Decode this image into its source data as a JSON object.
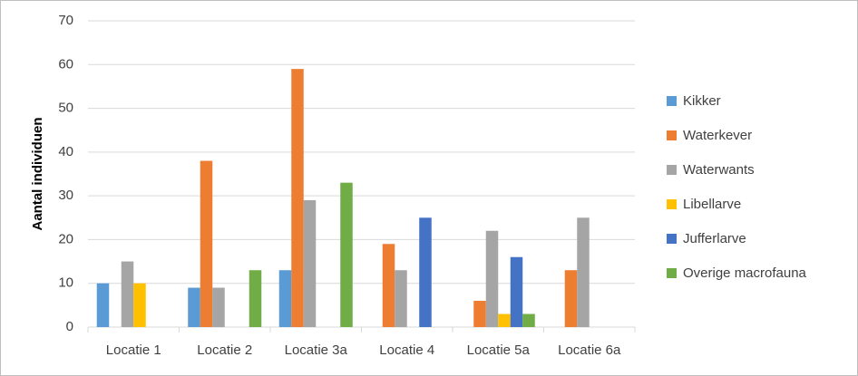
{
  "chart_data": {
    "type": "bar",
    "y_label": "Aantal individuen",
    "categories": [
      "Locatie 1",
      "Locatie 2",
      "Locatie 3a",
      "Locatie 4",
      "Locatie 5a",
      "Locatie 6a"
    ],
    "series": [
      {
        "name": "Kikker",
        "color": "#5b9bd5",
        "values": [
          10,
          9,
          13,
          0,
          0,
          0
        ]
      },
      {
        "name": "Waterkever",
        "color": "#ed7d31",
        "values": [
          0,
          38,
          59,
          19,
          6,
          13
        ]
      },
      {
        "name": "Waterwants",
        "color": "#a5a5a5",
        "values": [
          15,
          9,
          29,
          13,
          22,
          25
        ]
      },
      {
        "name": "Libellarve",
        "color": "#ffc000",
        "values": [
          10,
          0,
          0,
          0,
          3,
          0
        ]
      },
      {
        "name": "Jufferlarve",
        "color": "#4472c4",
        "values": [
          0,
          0,
          0,
          25,
          16,
          0
        ]
      },
      {
        "name": "Overige macrofauna",
        "color": "#70ad47",
        "values": [
          0,
          13,
          33,
          0,
          3,
          0
        ]
      }
    ],
    "ylim": [
      0,
      70
    ],
    "yticks": [
      0,
      10,
      20,
      30,
      40,
      50,
      60,
      70
    ],
    "grid": true,
    "legend": "right"
  }
}
